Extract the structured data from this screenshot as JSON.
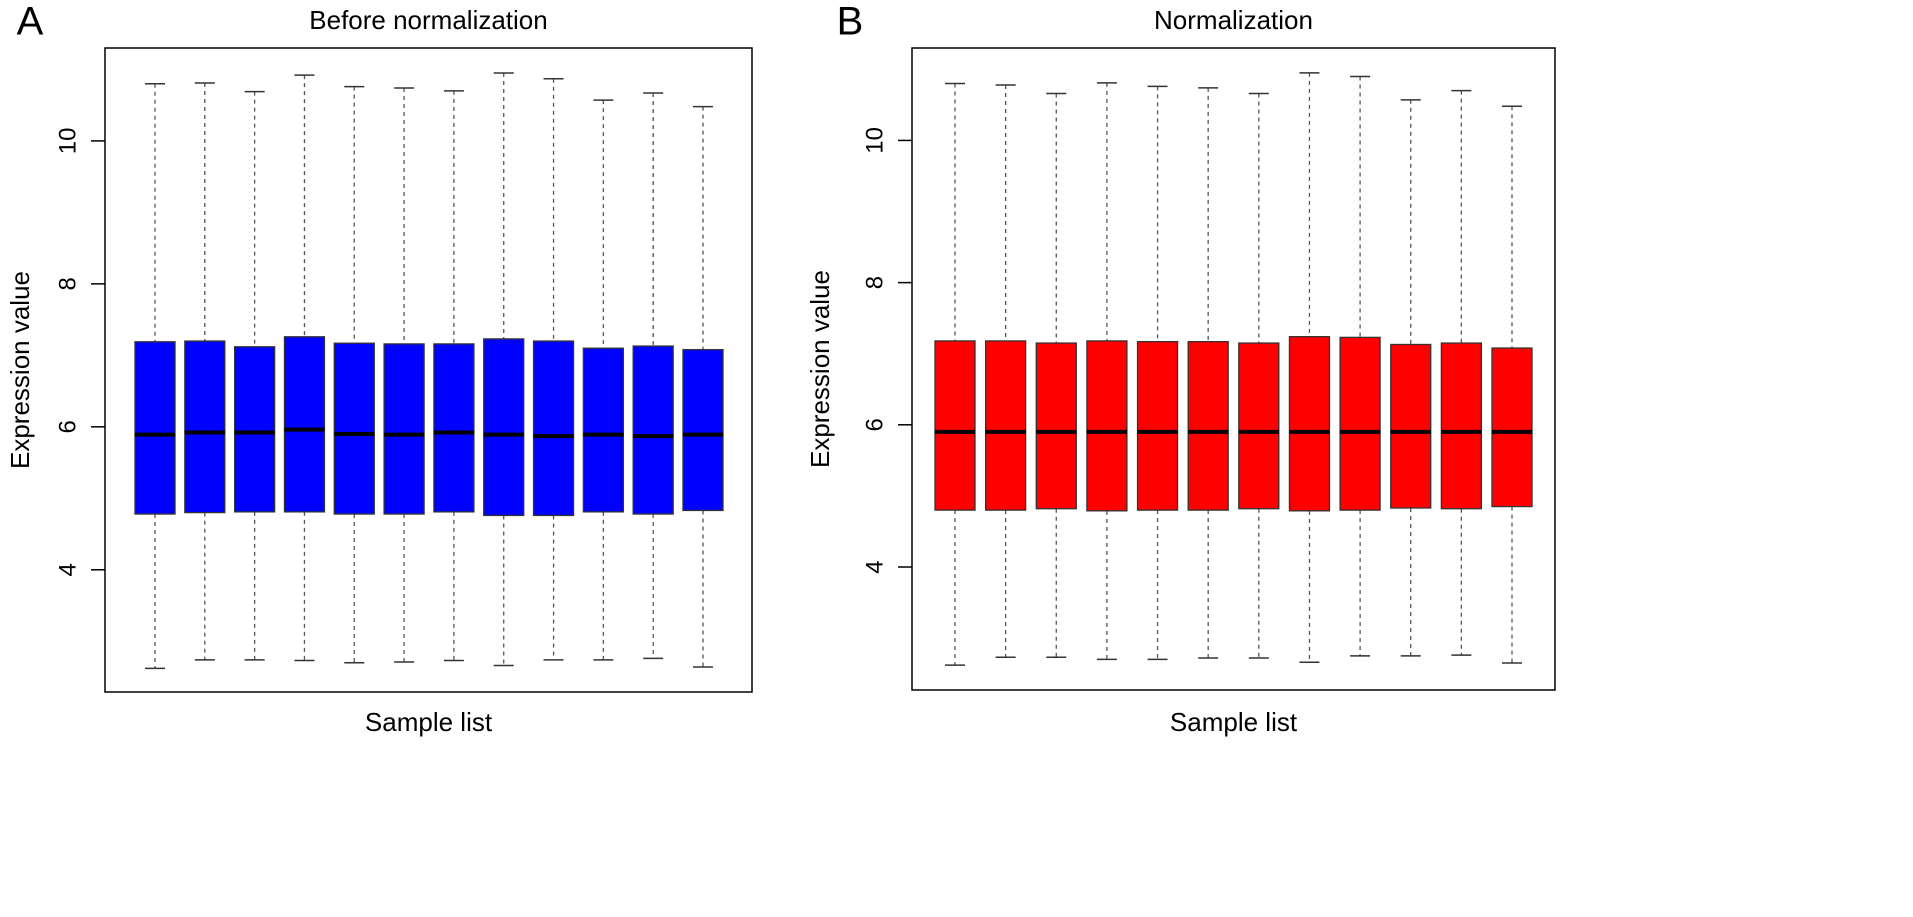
{
  "chart_data": [
    {
      "type": "boxplot",
      "panel_label": "A",
      "title": "Before normalization",
      "xlabel": "Sample list",
      "ylabel": "Expression value",
      "color": "#0000ff",
      "ylim": [
        2.29,
        11.3
      ],
      "yticks": [
        4,
        6,
        8,
        10
      ],
      "boxes": {
        "whisker_high": [
          10.8,
          10.81,
          10.69,
          10.92,
          10.76,
          10.74,
          10.7,
          10.95,
          10.87,
          10.57,
          10.67,
          10.48
        ],
        "q3": [
          7.19,
          7.2,
          7.12,
          7.26,
          7.17,
          7.16,
          7.16,
          7.23,
          7.2,
          7.1,
          7.13,
          7.08
        ],
        "median": [
          5.89,
          5.92,
          5.92,
          5.96,
          5.9,
          5.89,
          5.92,
          5.89,
          5.87,
          5.89,
          5.87,
          5.89
        ],
        "q1": [
          4.78,
          4.8,
          4.81,
          4.81,
          4.78,
          4.78,
          4.81,
          4.76,
          4.76,
          4.81,
          4.78,
          4.83
        ],
        "whisker_low": [
          2.62,
          2.74,
          2.74,
          2.73,
          2.7,
          2.71,
          2.73,
          2.66,
          2.74,
          2.74,
          2.76,
          2.64
        ]
      }
    },
    {
      "type": "boxplot",
      "panel_label": "B",
      "title": "Normalization",
      "xlabel": "Sample list",
      "ylabel": "Expression value",
      "color": "#ff0000",
      "ylim": [
        2.27,
        11.3
      ],
      "yticks": [
        4,
        6,
        8,
        10
      ],
      "boxes": {
        "whisker_high": [
          10.8,
          10.78,
          10.66,
          10.81,
          10.76,
          10.74,
          10.66,
          10.95,
          10.9,
          10.57,
          10.7,
          10.48
        ],
        "q3": [
          7.18,
          7.18,
          7.15,
          7.18,
          7.17,
          7.17,
          7.15,
          7.24,
          7.23,
          7.13,
          7.15,
          7.08
        ],
        "median": [
          5.9,
          5.9,
          5.9,
          5.9,
          5.9,
          5.9,
          5.9,
          5.9,
          5.9,
          5.9,
          5.9,
          5.9
        ],
        "q1": [
          4.8,
          4.8,
          4.82,
          4.79,
          4.8,
          4.8,
          4.82,
          4.79,
          4.8,
          4.83,
          4.82,
          4.85
        ],
        "whisker_low": [
          2.62,
          2.73,
          2.73,
          2.7,
          2.7,
          2.72,
          2.72,
          2.66,
          2.75,
          2.75,
          2.76,
          2.65
        ]
      }
    }
  ]
}
